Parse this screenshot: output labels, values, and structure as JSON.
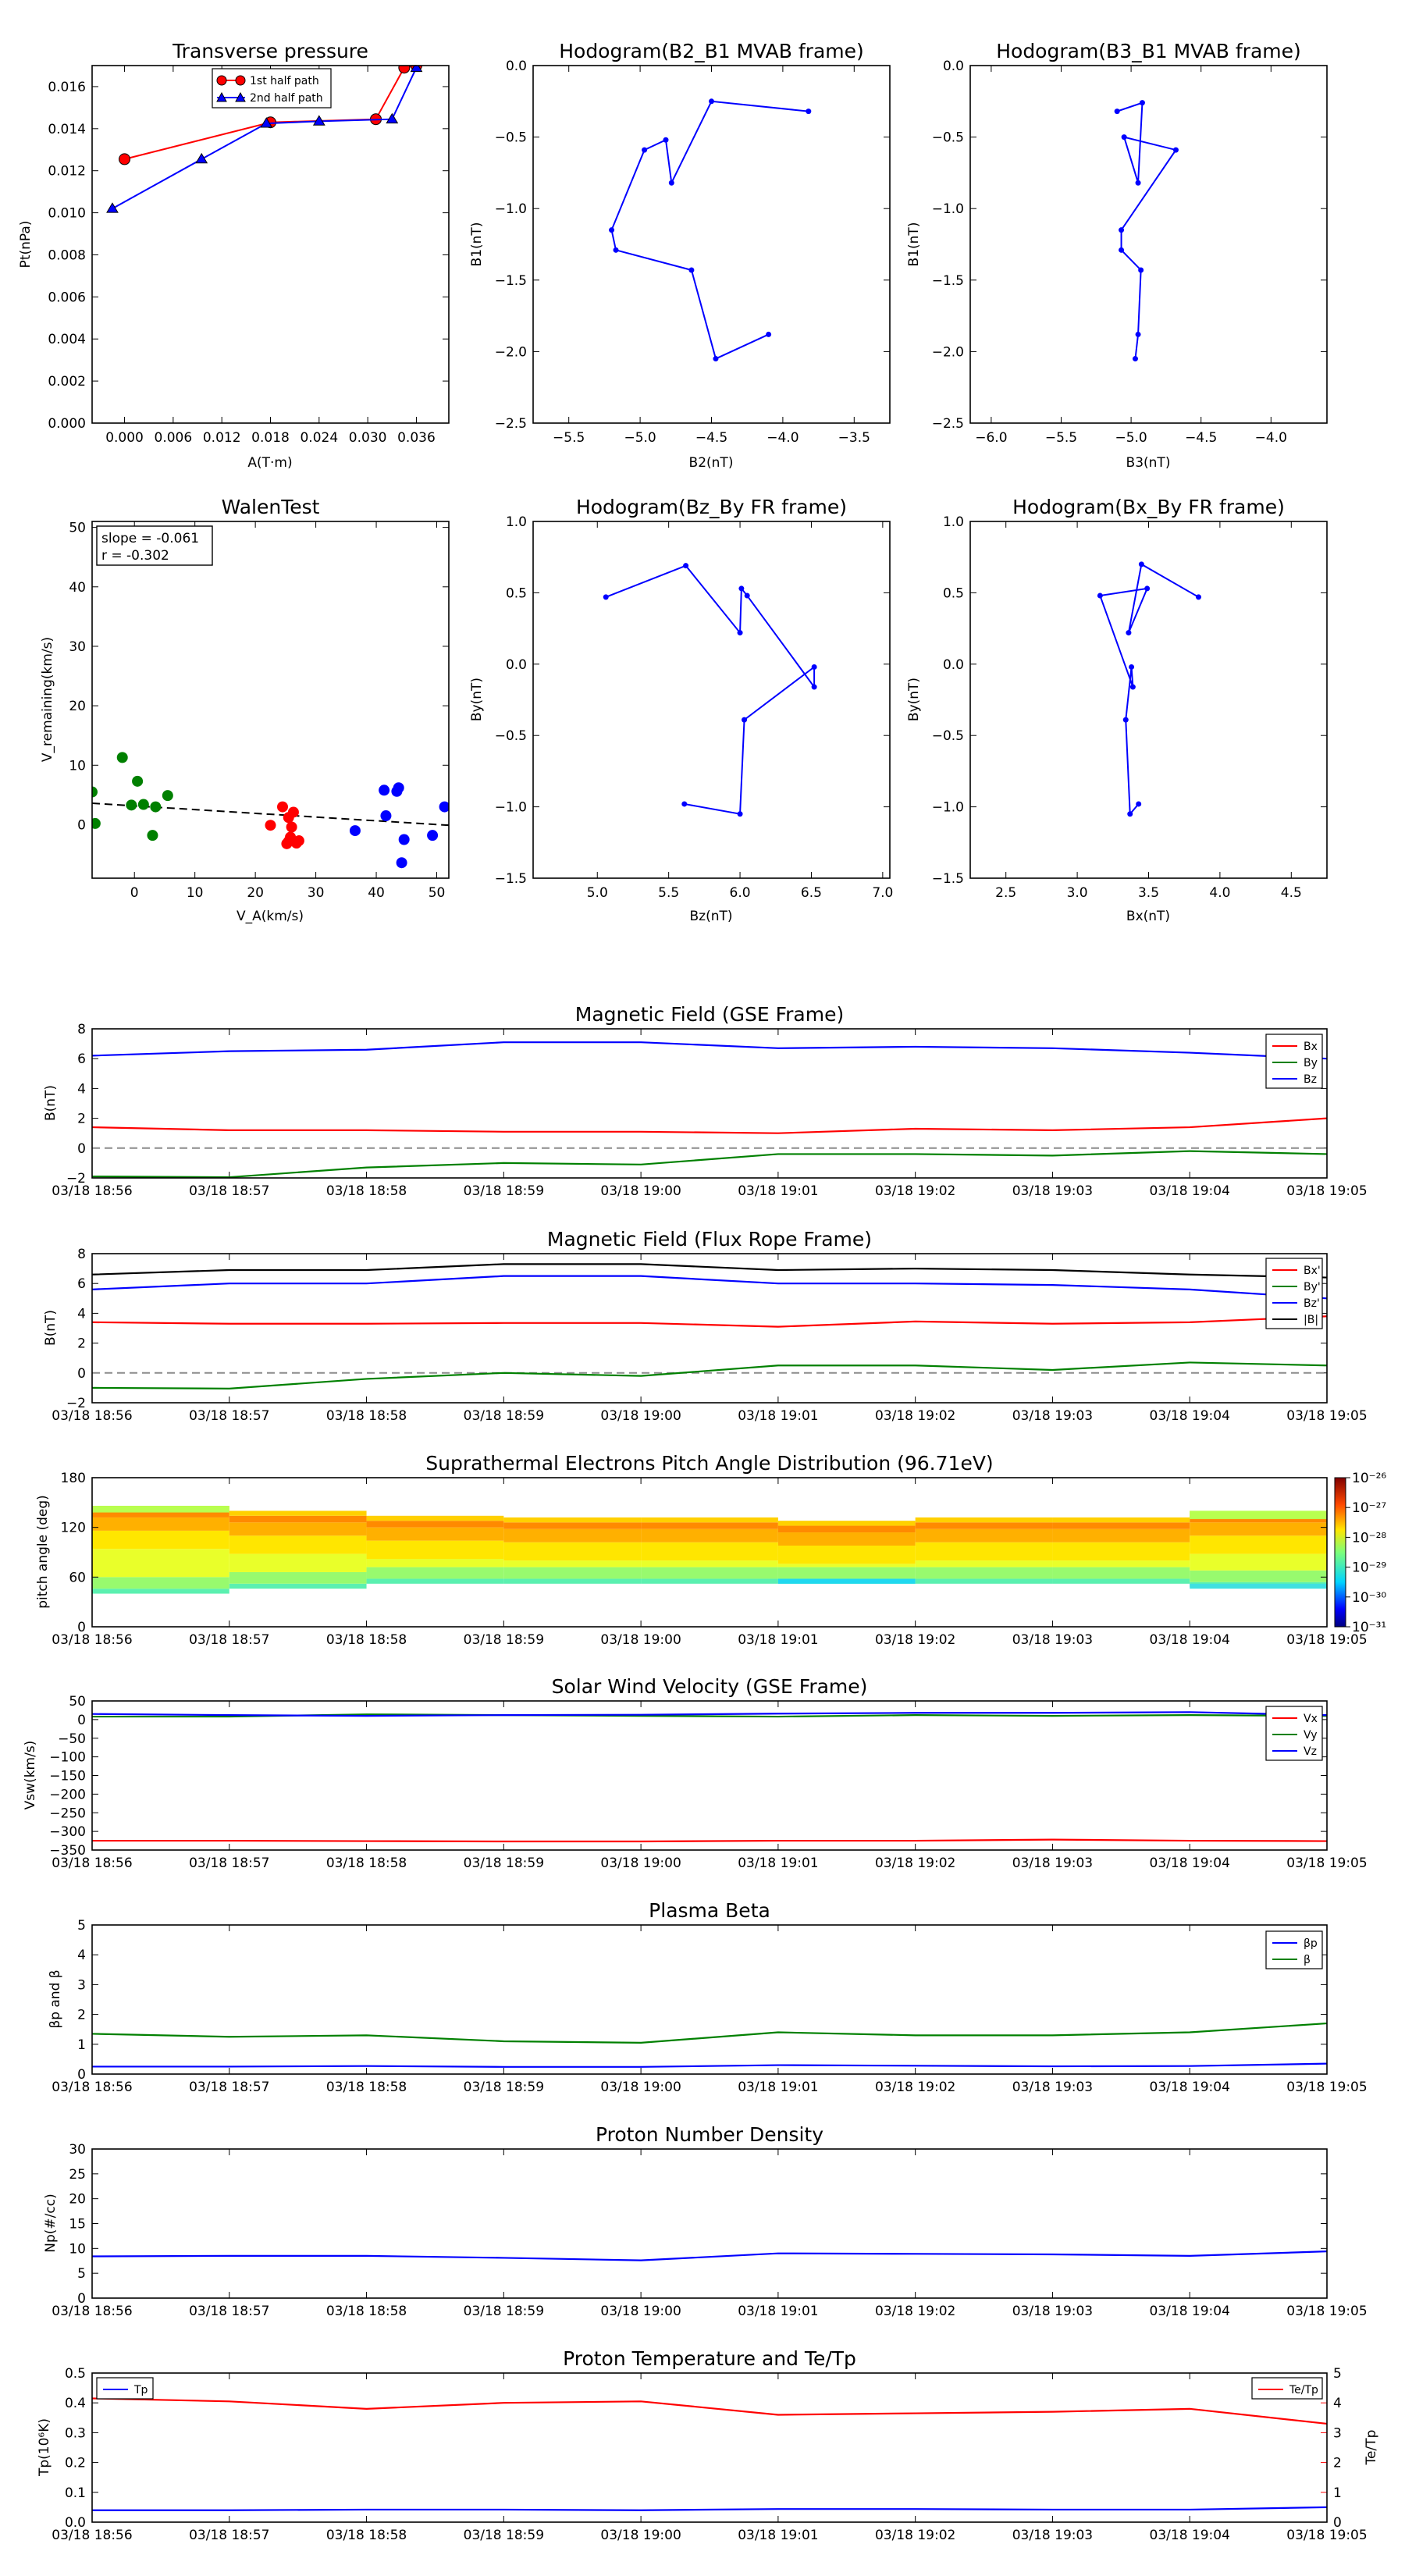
{
  "times": [
    "03/18 18:56",
    "03/18 18:57",
    "03/18 18:58",
    "03/18 18:59",
    "03/18 19:00",
    "03/18 19:01",
    "03/18 19:02",
    "03/18 19:03",
    "03/18 19:04",
    "03/18 19:05"
  ],
  "colors": {
    "red": "#ff0000",
    "green": "#008000",
    "blue": "#0000ff",
    "black": "#000000",
    "gray": "#8c8c8c"
  },
  "chart_data": [
    {
      "id": "pt",
      "type": "scatter",
      "title": "Transverse pressure",
      "xlabel": "A(T·m)",
      "ylabel": "Pt(nPa)",
      "xlim": [
        -0.004,
        0.04
      ],
      "ylim": [
        0.0,
        0.017
      ],
      "xticks": [
        0.0,
        0.006,
        0.012,
        0.018,
        0.024,
        0.03,
        0.036
      ],
      "xtick_labels": [
        "0.000",
        "0.006",
        "0.012",
        "0.018",
        "0.024",
        "0.030",
        "0.036"
      ],
      "yticks": [
        0,
        0.002,
        0.004,
        0.006,
        0.008,
        0.01,
        0.012,
        0.014,
        0.016
      ],
      "ytick_labels": [
        "0.000",
        "0.002",
        "0.004",
        "0.006",
        "0.008",
        "0.010",
        "0.012",
        "0.014",
        "0.016"
      ],
      "legend": "top-center",
      "series": [
        {
          "name": "1st half path",
          "color": "#ff0000",
          "marker": "circle",
          "x": [
            0.0,
            0.018,
            0.031,
            0.0345,
            0.036
          ],
          "y": [
            0.01255,
            0.0143,
            0.01445,
            0.0169,
            0.017
          ]
        },
        {
          "name": "2nd half path",
          "color": "#0000ff",
          "marker": "triangle",
          "x": [
            -0.0015,
            0.0095,
            0.0175,
            0.024,
            0.033,
            0.036
          ],
          "y": [
            0.0102,
            0.01255,
            0.01425,
            0.01435,
            0.01445,
            0.0169
          ]
        }
      ]
    },
    {
      "id": "h1",
      "type": "line",
      "title": "Hodogram(B2_B1 MVAB frame)",
      "xlabel": "B2(nT)",
      "ylabel": "B1(nT)",
      "xlim": [
        -5.75,
        -3.25
      ],
      "ylim": [
        -2.5,
        0.0
      ],
      "xticks": [
        -5.5,
        -5.0,
        -4.5,
        -4.0,
        -3.5
      ],
      "xtick_labels": [
        "−5.5",
        "−5.0",
        "−4.5",
        "−4.0",
        "−3.5"
      ],
      "yticks": [
        0.0,
        -0.5,
        -1.0,
        -1.5,
        -2.0,
        -2.5
      ],
      "ytick_labels": [
        "0.0",
        "−0.5",
        "−1.0",
        "−1.5",
        "−2.0",
        "−2.5"
      ],
      "series": [
        {
          "color": "#0000ff",
          "x": [
            -3.82,
            -4.5,
            -4.78,
            -4.82,
            -4.97,
            -5.2,
            -5.17,
            -4.64,
            -4.47,
            -4.1
          ],
          "y": [
            -0.32,
            -0.25,
            -0.82,
            -0.52,
            -0.59,
            -1.15,
            -1.29,
            -1.43,
            -2.05,
            -1.88
          ]
        }
      ]
    },
    {
      "id": "h2",
      "type": "line",
      "title": "Hodogram(B3_B1 MVAB frame)",
      "xlabel": "B3(nT)",
      "ylabel": "B1(nT)",
      "xlim": [
        -6.15,
        -3.6
      ],
      "ylim": [
        -2.5,
        0.0
      ],
      "xticks": [
        -6.0,
        -5.5,
        -5.0,
        -4.5,
        -4.0
      ],
      "xtick_labels": [
        "−6.0",
        "−5.5",
        "−5.0",
        "−4.5",
        "−4.0"
      ],
      "yticks": [
        0.0,
        -0.5,
        -1.0,
        -1.5,
        -2.0,
        -2.5
      ],
      "ytick_labels": [
        "0.0",
        "−0.5",
        "−1.0",
        "−1.5",
        "−2.0",
        "−2.5"
      ],
      "series": [
        {
          "color": "#0000ff",
          "x": [
            -5.1,
            -4.92,
            -4.95,
            -5.05,
            -4.68,
            -5.07,
            -5.07,
            -4.93,
            -4.95,
            -4.97
          ],
          "y": [
            -0.32,
            -0.26,
            -0.82,
            -0.5,
            -0.59,
            -1.15,
            -1.29,
            -1.43,
            -1.88,
            -2.05
          ]
        }
      ]
    },
    {
      "id": "walen",
      "type": "scatter",
      "title": "WalenTest",
      "xlabel": "V_A(km/s)",
      "ylabel": "V_remaining(km/s)",
      "xlim": [
        -7,
        52
      ],
      "ylim": [
        -9,
        51
      ],
      "xticks": [
        0,
        10,
        20,
        30,
        40,
        50
      ],
      "xtick_labels": [
        "0",
        "10",
        "20",
        "30",
        "40",
        "50"
      ],
      "yticks": [
        0,
        10,
        20,
        30,
        40,
        50
      ],
      "ytick_labels": [
        "0",
        "10",
        "20",
        "30",
        "40",
        "50"
      ],
      "annotation": [
        "slope = -0.061",
        "r = -0.302"
      ],
      "fit": {
        "x": [
          -7,
          52
        ],
        "y": [
          3.6,
          -0.1
        ],
        "color": "#000000",
        "style": "dashed"
      },
      "series": [
        {
          "color": "#008000",
          "x": [
            -7,
            -6.5,
            -2,
            -0.5,
            0.5,
            1.5,
            3,
            3.5,
            5.5
          ],
          "y": [
            5.5,
            0.2,
            11.3,
            3.3,
            7.3,
            3.4,
            -1.8,
            3.0,
            4.9
          ]
        },
        {
          "color": "#ff0000",
          "x": [
            22.5,
            24.5,
            25.5,
            25.8,
            26.0,
            26.3,
            26.8,
            27.2,
            25.2,
            25.5
          ],
          "y": [
            -0.1,
            3.0,
            1.2,
            -2.1,
            -0.4,
            2.1,
            -3.1,
            -2.7,
            -3.2,
            -2.8
          ]
        },
        {
          "color": "#0000ff",
          "x": [
            36.5,
            41.3,
            41.6,
            43.4,
            43.7,
            44.2,
            44.6,
            49.3,
            51.3
          ],
          "y": [
            -1.0,
            5.8,
            1.5,
            5.6,
            6.2,
            -6.4,
            -2.5,
            -1.8,
            3.0
          ]
        }
      ]
    },
    {
      "id": "h3",
      "type": "line",
      "title": "Hodogram(Bz_By FR frame)",
      "xlabel": "Bz(nT)",
      "ylabel": "By(nT)",
      "xlim": [
        4.55,
        7.05
      ],
      "ylim": [
        -1.5,
        1.0
      ],
      "xticks": [
        5.0,
        5.5,
        6.0,
        6.5,
        7.0
      ],
      "xtick_labels": [
        "5.0",
        "5.5",
        "6.0",
        "6.5",
        "7.0"
      ],
      "yticks": [
        1.0,
        0.5,
        0.0,
        -0.5,
        -1.0,
        -1.5
      ],
      "ytick_labels": [
        "1.0",
        "0.5",
        "0.0",
        "−0.5",
        "−1.0",
        "−1.5"
      ],
      "series": [
        {
          "color": "#0000ff",
          "x": [
            5.06,
            5.62,
            6.0,
            6.01,
            6.05,
            6.52,
            6.52,
            6.03,
            6.0,
            5.61
          ],
          "y": [
            0.47,
            0.69,
            0.22,
            0.53,
            0.48,
            -0.16,
            -0.02,
            -0.39,
            -1.05,
            -0.98
          ]
        }
      ]
    },
    {
      "id": "h4",
      "type": "line",
      "title": "Hodogram(Bx_By FR frame)",
      "xlabel": "Bx(nT)",
      "ylabel": "By(nT)",
      "xlim": [
        2.25,
        4.75
      ],
      "ylim": [
        -1.5,
        1.0
      ],
      "xticks": [
        2.5,
        3.0,
        3.5,
        4.0,
        4.5
      ],
      "xtick_labels": [
        "2.5",
        "3.0",
        "3.5",
        "4.0",
        "4.5"
      ],
      "yticks": [
        1.0,
        0.5,
        0.0,
        -0.5,
        -1.0,
        -1.5
      ],
      "ytick_labels": [
        "1.0",
        "0.5",
        "0.0",
        "−0.5",
        "−1.0",
        "−1.5"
      ],
      "series": [
        {
          "color": "#0000ff",
          "x": [
            3.85,
            3.45,
            3.36,
            3.49,
            3.16,
            3.39,
            3.38,
            3.34,
            3.37,
            3.43
          ],
          "y": [
            0.47,
            0.7,
            0.22,
            0.53,
            0.48,
            -0.16,
            -0.02,
            -0.39,
            -1.05,
            -0.98
          ]
        }
      ]
    },
    {
      "id": "bgse",
      "type": "line",
      "title": "Magnetic Field (GSE Frame)",
      "ylabel": "B(nT)",
      "ylim": [
        -2,
        8
      ],
      "yticks": [
        -2,
        0,
        2,
        4,
        6,
        8
      ],
      "ytick_labels": [
        "−2",
        "0",
        "2",
        "4",
        "6",
        "8"
      ],
      "zero_line": true,
      "legend": "top-right",
      "series": [
        {
          "name": "Bx",
          "color": "#ff0000",
          "values": [
            1.4,
            1.2,
            1.2,
            1.1,
            1.1,
            1.0,
            1.3,
            1.2,
            1.4,
            2.0
          ]
        },
        {
          "name": "By",
          "color": "#008000",
          "values": [
            -1.9,
            -1.95,
            -1.3,
            -1.0,
            -1.1,
            -0.4,
            -0.4,
            -0.5,
            -0.2,
            -0.4
          ]
        },
        {
          "name": "Bz",
          "color": "#0000ff",
          "values": [
            6.2,
            6.5,
            6.6,
            7.1,
            7.1,
            6.7,
            6.8,
            6.7,
            6.4,
            6.0
          ]
        }
      ]
    },
    {
      "id": "bfr",
      "type": "line",
      "title": "Magnetic Field (Flux Rope Frame)",
      "ylabel": "B(nT)",
      "ylim": [
        -2,
        8
      ],
      "yticks": [
        -2,
        0,
        2,
        4,
        6,
        8
      ],
      "ytick_labels": [
        "−2",
        "0",
        "2",
        "4",
        "6",
        "8"
      ],
      "zero_line": true,
      "legend": "top-right",
      "series": [
        {
          "name": "Bx'",
          "color": "#ff0000",
          "values": [
            3.4,
            3.3,
            3.3,
            3.35,
            3.35,
            3.1,
            3.45,
            3.3,
            3.4,
            3.8
          ]
        },
        {
          "name": "By'",
          "color": "#008000",
          "values": [
            -1.0,
            -1.05,
            -0.4,
            0.0,
            -0.2,
            0.5,
            0.5,
            0.2,
            0.7,
            0.5
          ]
        },
        {
          "name": "Bz'",
          "color": "#0000ff",
          "values": [
            5.6,
            6.0,
            6.0,
            6.5,
            6.5,
            6.0,
            6.0,
            5.9,
            5.6,
            5.0
          ]
        },
        {
          "name": "|B|",
          "color": "#000000",
          "values": [
            6.6,
            6.9,
            6.9,
            7.3,
            7.3,
            6.9,
            7.0,
            6.9,
            6.6,
            6.4
          ]
        }
      ]
    },
    {
      "id": "pad",
      "type": "heatmap",
      "title": "Suprathermal Electrons Pitch Angle Distribution (96.71eV)",
      "ylabel": "pitch angle (deg)",
      "ylim": [
        0,
        180
      ],
      "yticks": [
        0,
        60,
        120,
        180
      ],
      "ytick_labels": [
        "0",
        "60",
        "120",
        "180"
      ],
      "colorbar_labels": [
        "10⁻²⁶",
        "10⁻²⁷",
        "10⁻²⁸",
        "10⁻²⁹",
        "10⁻³⁰",
        "10⁻³¹"
      ]
    },
    {
      "id": "vsw",
      "type": "line",
      "title": "Solar Wind Velocity (GSE Frame)",
      "ylabel": "Vsw(km/s)",
      "ylim": [
        -350,
        50
      ],
      "yticks": [
        50,
        0,
        -50,
        -100,
        -150,
        -200,
        -250,
        -300,
        -350
      ],
      "ytick_labels": [
        "50",
        "0",
        "−50",
        "−100",
        "−150",
        "−200",
        "−250",
        "−300",
        "−350"
      ],
      "legend": "top-right",
      "series": [
        {
          "name": "Vx",
          "color": "#ff0000",
          "values": [
            -325,
            -325,
            -326,
            -327,
            -327,
            -325,
            -325,
            -322,
            -325,
            -326
          ]
        },
        {
          "name": "Vy",
          "color": "#008000",
          "values": [
            8,
            8,
            14,
            12,
            10,
            8,
            12,
            10,
            12,
            10
          ]
        },
        {
          "name": "Vz",
          "color": "#0000ff",
          "values": [
            15,
            12,
            10,
            12,
            13,
            16,
            18,
            18,
            20,
            12
          ]
        }
      ]
    },
    {
      "id": "beta",
      "type": "line",
      "title": "Plasma Beta",
      "ylabel": "βp and β",
      "ylim": [
        0,
        5
      ],
      "yticks": [
        0,
        1,
        2,
        3,
        4,
        5
      ],
      "ytick_labels": [
        "0",
        "1",
        "2",
        "3",
        "4",
        "5"
      ],
      "legend": "top-right",
      "series": [
        {
          "name": "βp",
          "color": "#0000ff",
          "values": [
            0.25,
            0.25,
            0.27,
            0.24,
            0.24,
            0.3,
            0.28,
            0.26,
            0.27,
            0.35
          ]
        },
        {
          "name": "β",
          "color": "#008000",
          "values": [
            1.35,
            1.25,
            1.3,
            1.1,
            1.05,
            1.4,
            1.3,
            1.3,
            1.4,
            1.7
          ]
        }
      ]
    },
    {
      "id": "np",
      "type": "line",
      "title": "Proton Number Density",
      "ylabel": "Np(#/cc)",
      "ylim": [
        0,
        30
      ],
      "yticks": [
        0,
        5,
        10,
        15,
        20,
        25,
        30
      ],
      "ytick_labels": [
        "0",
        "5",
        "10",
        "15",
        "20",
        "25",
        "30"
      ],
      "series": [
        {
          "color": "#0000ff",
          "values": [
            8.4,
            8.5,
            8.5,
            8.1,
            7.6,
            9.0,
            8.9,
            8.8,
            8.5,
            9.4
          ]
        }
      ]
    },
    {
      "id": "tp",
      "type": "line",
      "title": "Proton Temperature and Te/Tp",
      "ylabel": "Tp(10⁶K)",
      "y2label": "Te/Tp",
      "ylim": [
        0,
        0.5
      ],
      "yticks": [
        0,
        0.1,
        0.2,
        0.3,
        0.4,
        0.5
      ],
      "ytick_labels": [
        "0.0",
        "0.1",
        "0.2",
        "0.3",
        "0.4",
        "0.5"
      ],
      "y2lim": [
        0,
        5
      ],
      "y2ticks": [
        0,
        1,
        2,
        3,
        4,
        5
      ],
      "y2tick_labels": [
        "0",
        "1",
        "2",
        "3",
        "4",
        "5"
      ],
      "series": [
        {
          "name": "Tp",
          "color": "#0000ff",
          "axis": "left",
          "values": [
            0.04,
            0.04,
            0.042,
            0.042,
            0.04,
            0.044,
            0.044,
            0.042,
            0.042,
            0.05
          ]
        },
        {
          "name": "Te/Tp",
          "color": "#ff0000",
          "axis": "right",
          "values": [
            4.15,
            4.05,
            3.8,
            4.0,
            4.05,
            3.6,
            3.65,
            3.7,
            3.8,
            3.3
          ]
        }
      ]
    }
  ]
}
